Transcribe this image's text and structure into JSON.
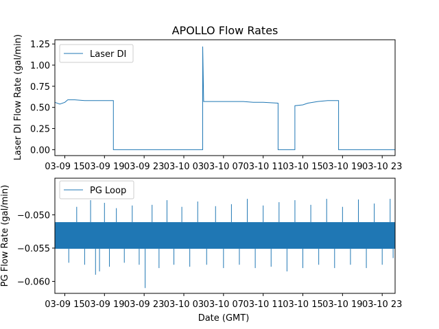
{
  "chart_data": [
    {
      "type": "line",
      "title": "APOLLO Flow Rates",
      "xlabel": "",
      "ylabel": "Laser DI Flow Rate (gal/min)",
      "xlim_hours": [
        -1.0,
        33.3
      ],
      "ylim": [
        -0.07,
        1.3
      ],
      "yticks": [
        0.0,
        0.25,
        0.5,
        0.75,
        1.0,
        1.25
      ],
      "ytick_labels": [
        "0.00",
        "0.25",
        "0.50",
        "0.75",
        "1.00",
        "1.25"
      ],
      "xticks_hours": [
        0,
        4,
        8,
        12,
        16,
        20,
        24,
        28,
        32
      ],
      "xtick_labels": [
        "03-09 15",
        "03-09 19",
        "03-09 23",
        "03-10 03",
        "03-10 07",
        "03-10 11",
        "03-10 15",
        "03-10 19",
        "03-10 23"
      ],
      "legend": "top-left",
      "series": [
        {
          "name": "Laser DI",
          "color": "#1f77b4",
          "points": [
            [
              -1.0,
              0.56
            ],
            [
              -0.5,
              0.54
            ],
            [
              0.0,
              0.56
            ],
            [
              0.3,
              0.59
            ],
            [
              1.0,
              0.59
            ],
            [
              2.0,
              0.58
            ],
            [
              3.0,
              0.58
            ],
            [
              4.0,
              0.58
            ],
            [
              4.9,
              0.58
            ],
            [
              4.9,
              0.0
            ],
            [
              8.0,
              0.0
            ],
            [
              12.0,
              0.0
            ],
            [
              13.9,
              0.0
            ],
            [
              13.9,
              1.22
            ],
            [
              14.0,
              0.57
            ],
            [
              15.0,
              0.57
            ],
            [
              16.0,
              0.57
            ],
            [
              17.0,
              0.57
            ],
            [
              18.0,
              0.57
            ],
            [
              19.0,
              0.56
            ],
            [
              20.0,
              0.56
            ],
            [
              21.5,
              0.55
            ],
            [
              21.5,
              0.0
            ],
            [
              23.2,
              0.0
            ],
            [
              23.2,
              0.52
            ],
            [
              24.0,
              0.53
            ],
            [
              24.5,
              0.55
            ],
            [
              25.5,
              0.57
            ],
            [
              26.5,
              0.58
            ],
            [
              27.6,
              0.58
            ],
            [
              27.6,
              0.0
            ],
            [
              30.0,
              0.0
            ],
            [
              33.3,
              0.0
            ]
          ]
        }
      ]
    },
    {
      "type": "line",
      "title": "",
      "xlabel": "Date (GMT)",
      "ylabel": "PG Flow Rate (gal/min)",
      "xlim_hours": [
        -1.0,
        33.3
      ],
      "ylim": [
        -0.0618,
        -0.0445
      ],
      "yticks": [
        -0.06,
        -0.055,
        -0.05
      ],
      "ytick_labels": [
        "−0.060",
        "−0.055",
        "−0.050"
      ],
      "xticks_hours": [
        0,
        4,
        8,
        12,
        16,
        20,
        24,
        28,
        32
      ],
      "xtick_labels": [
        "03-09 15",
        "03-09 19",
        "03-09 23",
        "03-10 03",
        "03-10 07",
        "03-10 11",
        "03-10 15",
        "03-10 19",
        "03-10 23"
      ],
      "legend": "top-left",
      "series": [
        {
          "name": "PG Loop",
          "color": "#1f77b4",
          "band": [
            -0.0551,
            -0.0511
          ],
          "points": [
            [
              -1.0,
              -0.0531
            ],
            [
              2.0,
              -0.0531
            ],
            [
              5.0,
              -0.0531
            ],
            [
              8.0,
              -0.0531
            ],
            [
              11.0,
              -0.0531
            ],
            [
              14.0,
              -0.0531
            ],
            [
              17.0,
              -0.0531
            ],
            [
              20.0,
              -0.0531
            ],
            [
              23.0,
              -0.0531
            ],
            [
              26.0,
              -0.0531
            ],
            [
              29.0,
              -0.0531
            ],
            [
              33.3,
              -0.0531
            ]
          ],
          "spikes": [
            [
              0.4,
              -0.0572
            ],
            [
              1.2,
              -0.0488
            ],
            [
              2.0,
              -0.0575
            ],
            [
              2.6,
              -0.0478
            ],
            [
              3.1,
              -0.059
            ],
            [
              3.5,
              -0.0585
            ],
            [
              4.0,
              -0.0482
            ],
            [
              4.5,
              -0.0578
            ],
            [
              5.2,
              -0.049
            ],
            [
              6.0,
              -0.0572
            ],
            [
              6.8,
              -0.0486
            ],
            [
              7.5,
              -0.0575
            ],
            [
              8.1,
              -0.061
            ],
            [
              8.8,
              -0.0485
            ],
            [
              9.5,
              -0.058
            ],
            [
              10.3,
              -0.0478
            ],
            [
              11.0,
              -0.0575
            ],
            [
              11.8,
              -0.0488
            ],
            [
              12.6,
              -0.0578
            ],
            [
              13.4,
              -0.048
            ],
            [
              14.3,
              -0.0575
            ],
            [
              15.2,
              -0.0487
            ],
            [
              16.0,
              -0.058
            ],
            [
              16.8,
              -0.0484
            ],
            [
              17.6,
              -0.0575
            ],
            [
              18.4,
              -0.0476
            ],
            [
              19.2,
              -0.058
            ],
            [
              20.0,
              -0.0486
            ],
            [
              20.8,
              -0.0578
            ],
            [
              21.6,
              -0.0481
            ],
            [
              22.4,
              -0.0585
            ],
            [
              23.2,
              -0.0478
            ],
            [
              24.0,
              -0.058
            ],
            [
              24.8,
              -0.0485
            ],
            [
              25.6,
              -0.0575
            ],
            [
              26.4,
              -0.0476
            ],
            [
              27.2,
              -0.058
            ],
            [
              28.0,
              -0.0488
            ],
            [
              28.8,
              -0.0575
            ],
            [
              29.6,
              -0.0477
            ],
            [
              30.4,
              -0.058
            ],
            [
              31.2,
              -0.0483
            ],
            [
              32.0,
              -0.0575
            ],
            [
              32.8,
              -0.0476
            ],
            [
              33.1,
              -0.0565
            ]
          ]
        }
      ]
    }
  ]
}
